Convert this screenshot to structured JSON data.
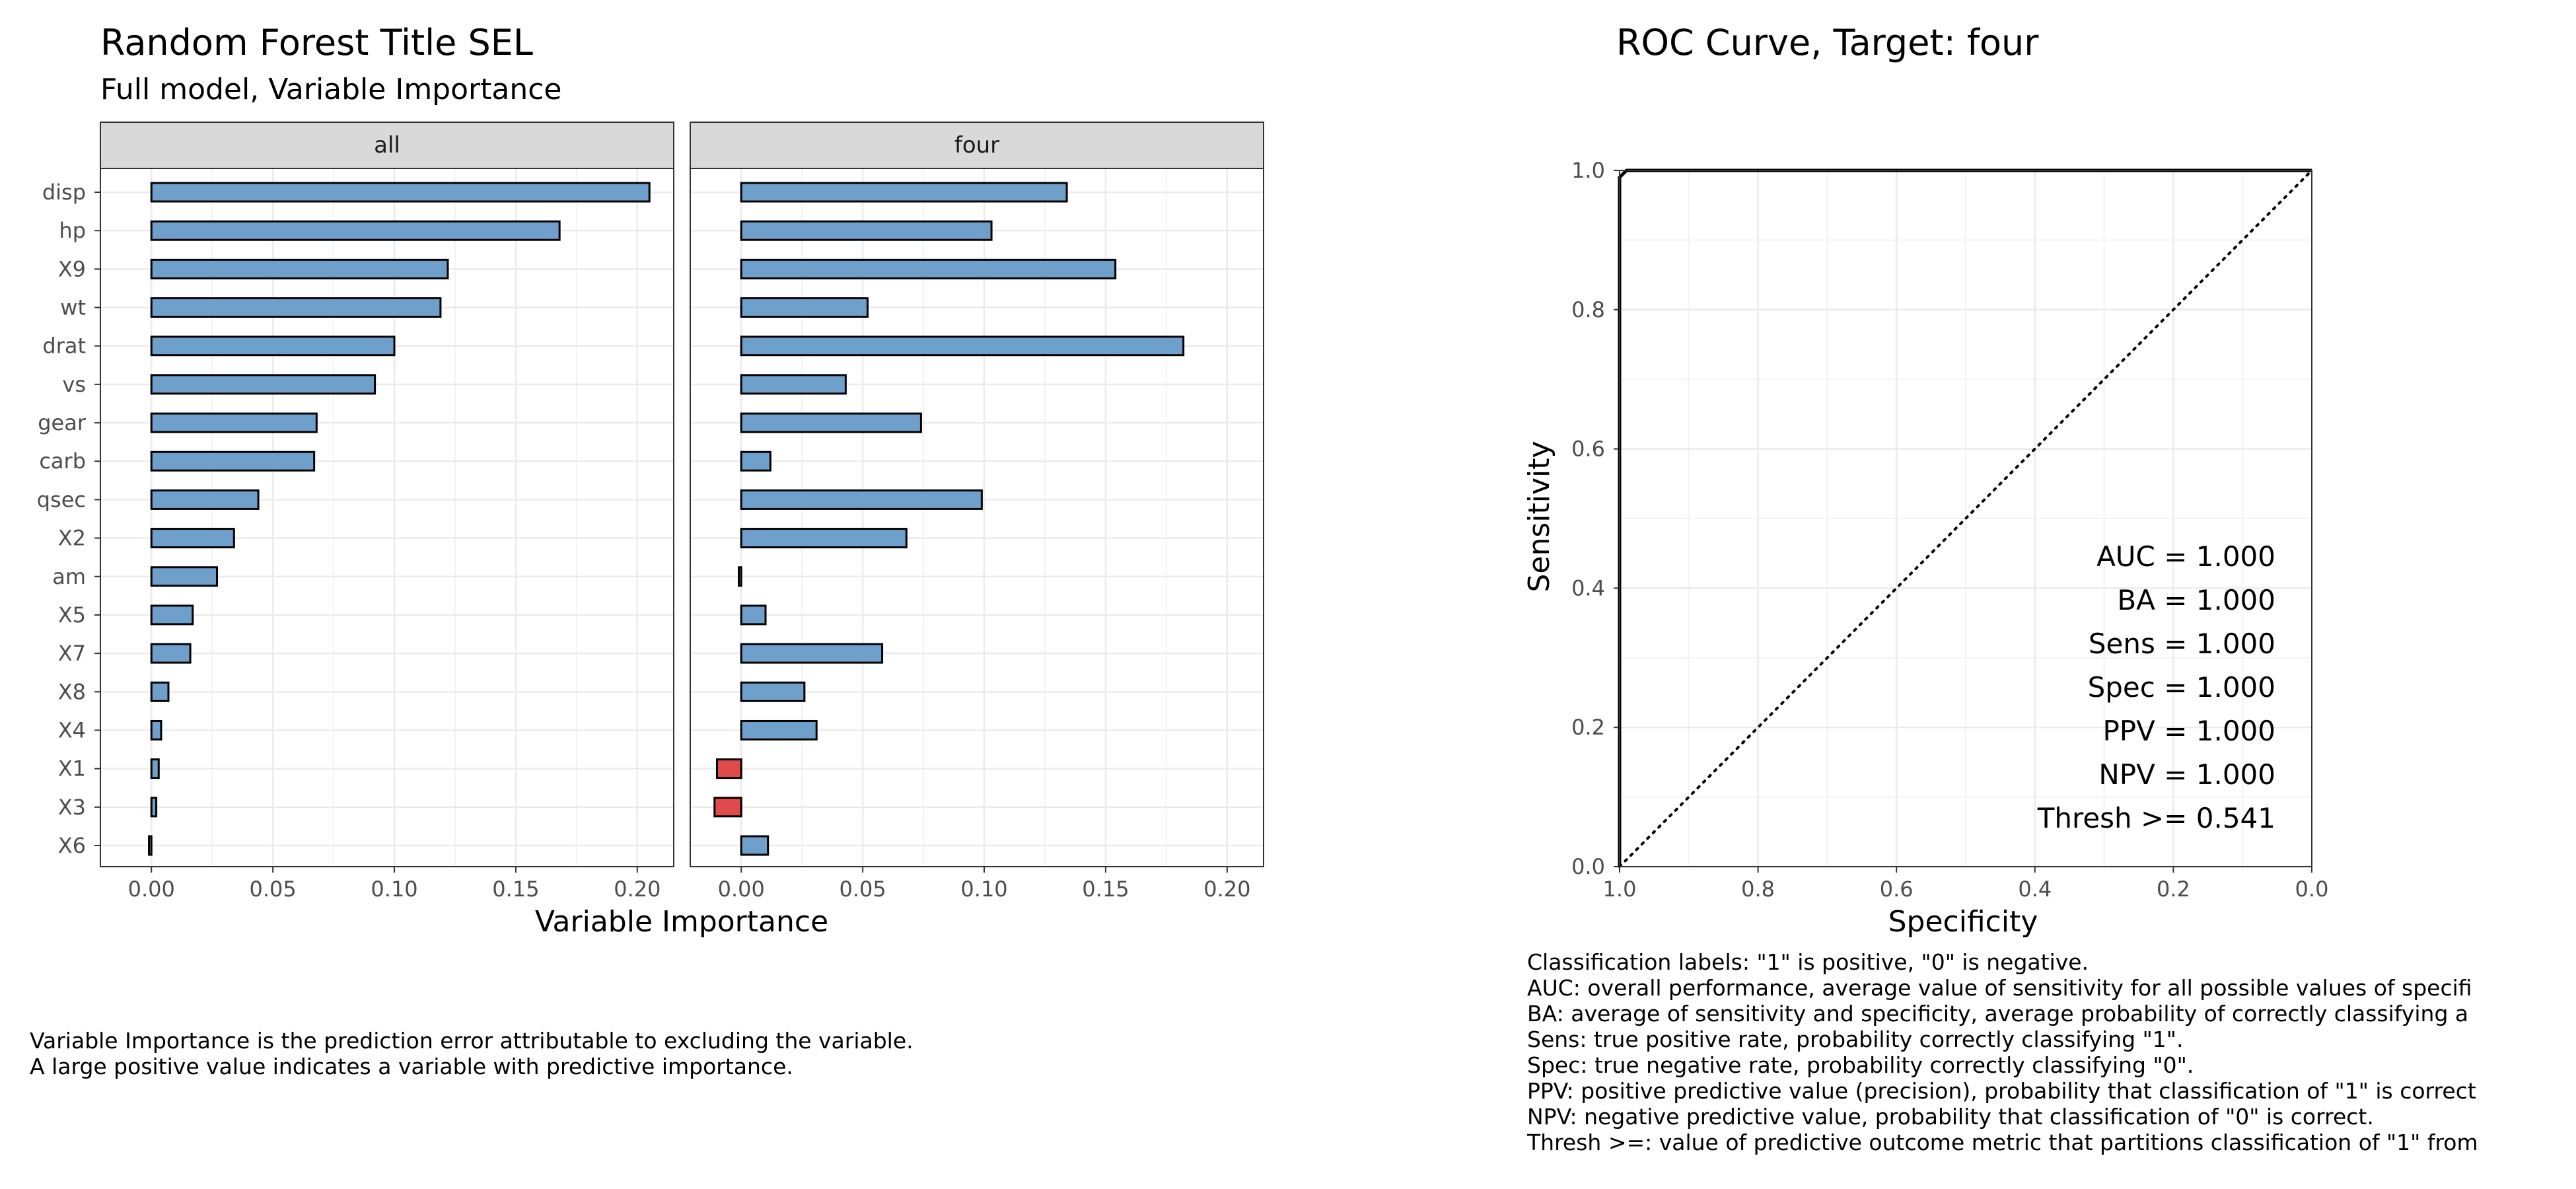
{
  "left_plot": {
    "title": "Random Forest Title SEL",
    "subtitle": "Full model, Variable Importance",
    "xlabel": "Variable Importance",
    "note_lines": [
      "Variable Importance is the prediction error attributable to excluding the variable.",
      "A large positive value indicates a variable with predictive importance."
    ]
  },
  "right_plot": {
    "title": "ROC Curve, Target:  four",
    "xlabel": "Specificity",
    "ylabel": "Sensitivity",
    "stats": [
      "AUC = 1.000",
      "BA = 1.000",
      "Sens = 1.000",
      "Spec = 1.000",
      "PPV = 1.000",
      "NPV = 1.000",
      "Thresh >= 0.541"
    ],
    "note_lines": [
      "Classification labels:  \"1\" is positive, \"0\" is negative.",
      "AUC: overall performance, average value of sensitivity for all possible values of specifi",
      "BA: average of sensitivity and specificity, average probability of correctly classifying a",
      "Sens: true positive rate, probability correctly classifying \"1\".",
      "Spec: true negative rate, probability correctly classifying \"0\".",
      "PPV: positive predictive value (precision), probability that classification of \"1\" is correct",
      "NPV: negative predictive value, probability that classification of \"0\" is correct.",
      "Thresh >=: value of predictive outcome metric that partitions classification of \"1\" from"
    ]
  },
  "colors": {
    "positive_bar": "#6fa0cc",
    "negative_bar": "#e04a4a",
    "strip_bg": "#d9d9d9",
    "grid": "#ebebeb"
  },
  "chart_data": [
    {
      "type": "bar",
      "orientation": "horizontal",
      "variables": [
        "disp",
        "hp",
        "X9",
        "wt",
        "drat",
        "vs",
        "gear",
        "carb",
        "qsec",
        "X2",
        "am",
        "X5",
        "X7",
        "X8",
        "X4",
        "X1",
        "X3",
        "X6"
      ],
      "facets": [
        {
          "name": "all",
          "values": [
            0.205,
            0.168,
            0.122,
            0.119,
            0.1,
            0.092,
            0.068,
            0.067,
            0.044,
            0.034,
            0.027,
            0.017,
            0.016,
            0.007,
            0.004,
            0.003,
            0.002,
            -0.001
          ]
        },
        {
          "name": "four",
          "values": [
            0.134,
            0.103,
            0.154,
            0.052,
            0.182,
            0.043,
            0.074,
            0.012,
            0.099,
            0.068,
            -0.001,
            0.01,
            0.058,
            0.026,
            0.031,
            -0.01,
            -0.011,
            0.011
          ]
        }
      ],
      "xlabel": "Variable Importance",
      "xlim": [
        -0.021,
        0.215
      ],
      "xticks": [
        "0.00",
        "0.05",
        "0.10",
        "0.15",
        "0.20"
      ],
      "xtick_values": [
        0,
        0.05,
        0.1,
        0.15,
        0.2
      ],
      "grid": true
    },
    {
      "type": "line",
      "title": "ROC Curve, Target:  four",
      "xlabel": "Specificity",
      "ylabel": "Sensitivity",
      "x_reversed": true,
      "xlim": [
        0,
        1
      ],
      "ylim": [
        0,
        1
      ],
      "xticks": [
        "1.0",
        "0.8",
        "0.6",
        "0.4",
        "0.2",
        "0.0"
      ],
      "xtick_values": [
        1.0,
        0.8,
        0.6,
        0.4,
        0.2,
        0.0
      ],
      "yticks": [
        "0.0",
        "0.2",
        "0.4",
        "0.6",
        "0.8",
        "1.0"
      ],
      "ytick_values": [
        0,
        0.2,
        0.4,
        0.6,
        0.8,
        1.0
      ],
      "roc": {
        "specificity": [
          1.0,
          1.0,
          0.99,
          0.0
        ],
        "sensitivity": [
          0.0,
          0.99,
          1.0,
          1.0
        ]
      },
      "reference": {
        "specificity": [
          1.0,
          0.0
        ],
        "sensitivity": [
          0.0,
          1.0
        ]
      },
      "grid": true
    }
  ]
}
